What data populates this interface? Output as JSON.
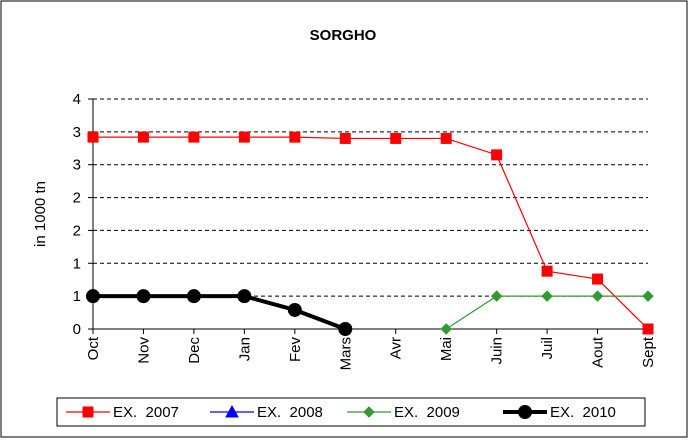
{
  "chart_data": {
    "type": "line",
    "title": "SORGHO",
    "y_label": "in 1000 tn",
    "categories": [
      "Oct",
      "Nov",
      "Dec",
      "Jan",
      "Fev",
      "Mars",
      "Avr",
      "Mai",
      "Juin",
      "Juil",
      "Aout",
      "Sept"
    ],
    "series": [
      {
        "name": "EX.  2007",
        "color": "#ff0000",
        "marker": "square",
        "width": 1.2,
        "values": [
          2.92,
          2.92,
          2.92,
          2.92,
          2.92,
          2.9,
          2.9,
          2.9,
          2.65,
          0.88,
          0.76,
          0
        ]
      },
      {
        "name": "EX.  2008",
        "color": "#0000ff",
        "marker": "triangle",
        "width": 1.2,
        "values": [
          null,
          null,
          null,
          null,
          null,
          null,
          null,
          null,
          null,
          null,
          null,
          null
        ]
      },
      {
        "name": "EX.  2009",
        "color": "#339933",
        "marker": "diamond",
        "width": 1.2,
        "values": [
          null,
          null,
          null,
          null,
          null,
          null,
          null,
          0,
          0.5,
          0.5,
          0.5,
          0.5
        ]
      },
      {
        "name": "EX.  2010",
        "color": "#000000",
        "marker": "circle",
        "width": 4,
        "values": [
          0.5,
          0.5,
          0.5,
          0.5,
          0.29,
          0,
          null,
          null,
          null,
          null,
          null,
          null
        ]
      }
    ],
    "ylim": [
      0,
      3.5
    ],
    "yticks": [
      0,
      {
        "value": 0.5,
        "label": "1"
      },
      {
        "value": 1,
        "label": "1"
      },
      {
        "value": 1.5,
        "label": "2"
      },
      {
        "value": 2,
        "label": "2"
      },
      {
        "value": 2.5,
        "label": "3"
      },
      {
        "value": 3,
        "label": "3"
      },
      {
        "value": 3.5,
        "label": "4"
      }
    ],
    "grid": true
  }
}
